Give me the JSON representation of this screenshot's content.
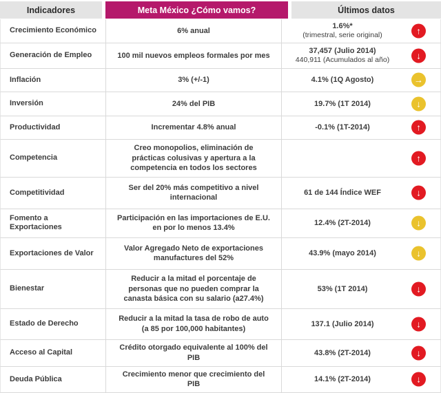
{
  "header": {
    "indicators": "Indicadores",
    "meta": "Meta México ¿Cómo vamos?",
    "latest": "Últimos datos"
  },
  "colors": {
    "header_magenta": "#b5196b",
    "header_gray": "#e4e4e4",
    "arrow_red": "#e21a22",
    "arrow_yellow": "#eac22d"
  },
  "rows": [
    {
      "indicator": "Crecimiento Económico",
      "meta": "6% anual",
      "latest_primary": "1.6%*",
      "latest_secondary": "(trimestral, serie original)",
      "arrow": {
        "dir": "up",
        "color": "red"
      }
    },
    {
      "indicator": "Generación de Empleo",
      "meta": "100 mil nuevos empleos formales por mes",
      "latest_primary": "37,457 (Julio 2014)",
      "latest_secondary": "440,911 (Acumulados al año)",
      "arrow": {
        "dir": "down",
        "color": "red"
      }
    },
    {
      "indicator": "Inflación",
      "meta": "3% (+/-1)",
      "latest_primary": "4.1% (1Q Agosto)",
      "arrow": {
        "dir": "right",
        "color": "yellow"
      }
    },
    {
      "indicator": "Inversión",
      "meta": "24% del PIB",
      "latest_primary": "19.7% (1T 2014)",
      "arrow": {
        "dir": "down",
        "color": "yellow"
      }
    },
    {
      "indicator": "Productividad",
      "meta": "Incrementar 4.8% anual",
      "latest_primary": "-0.1% (1T-2014)",
      "arrow": {
        "dir": "up",
        "color": "red"
      }
    },
    {
      "indicator": "Competencia",
      "meta": "Creo monopolios, eliminación de prácticas colusivas y apertura a la competencia en todos los sectores",
      "latest_primary": "",
      "arrow": {
        "dir": "up",
        "color": "red"
      }
    },
    {
      "indicator": "Competitividad",
      "meta": "Ser del 20% más competitivo a nivel internacional",
      "latest_primary": "61 de 144 Índice WEF",
      "arrow": {
        "dir": "down",
        "color": "red"
      }
    },
    {
      "indicator": "Fomento a Exportaciones",
      "meta": "Participación en las importaciones de E.U. en por lo menos 13.4%",
      "latest_primary": "12.4% (2T-2014)",
      "arrow": {
        "dir": "down",
        "color": "yellow"
      }
    },
    {
      "indicator": "Exportaciones de Valor",
      "meta": "Valor Agregado Neto de exportaciones manufactures del 52%",
      "latest_primary": "43.9% (mayo 2014)",
      "arrow": {
        "dir": "down",
        "color": "yellow"
      }
    },
    {
      "indicator": "Bienestar",
      "meta": "Reducir a la mitad el porcentaje de personas que no pueden comprar la canasta básica con su salario (a27.4%)",
      "latest_primary": "53% (1T 2014)",
      "arrow": {
        "dir": "down",
        "color": "red"
      }
    },
    {
      "indicator": "Estado de Derecho",
      "meta": "Reducir a la mitad la tasa de robo de auto (a 85 por 100,000 habitantes)",
      "latest_primary": "137.1 (Julio 2014)",
      "arrow": {
        "dir": "down",
        "color": "red"
      }
    },
    {
      "indicator": "Acceso al Capital",
      "meta": "Crédito otorgado equivalente al 100% del PIB",
      "latest_primary": "43.8% (2T-2014)",
      "arrow": {
        "dir": "down",
        "color": "red"
      }
    },
    {
      "indicator": "Deuda Pública",
      "meta": "Crecimiento menor que crecimiento del PIB",
      "latest_primary": "14.1% (2T-2014)",
      "arrow": {
        "dir": "down",
        "color": "red"
      }
    }
  ]
}
